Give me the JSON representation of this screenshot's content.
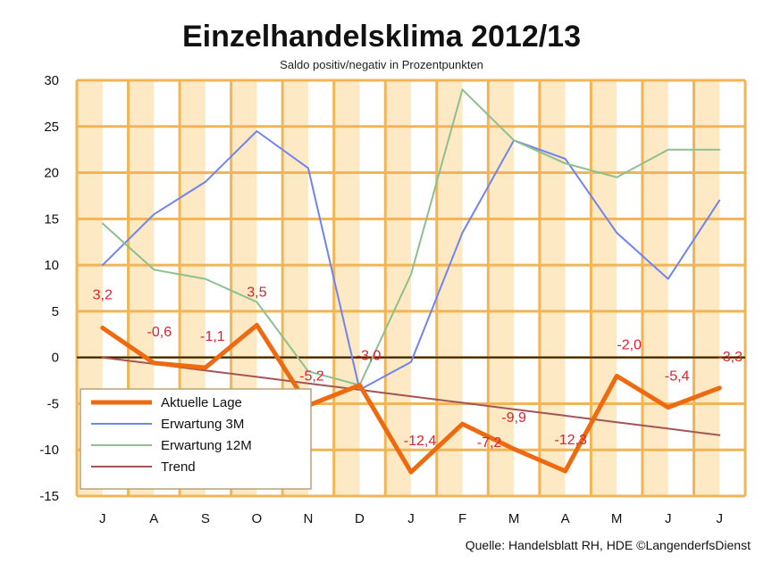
{
  "chart_data": {
    "type": "line",
    "title": "Einzelhandelsklima 2012/13",
    "subtitle": "Saldo positiv/negativ in Prozentpunkten",
    "source": "Quelle: Handelsblatt RH, HDE ©LangenderfsDienst",
    "categories": [
      "J",
      "A",
      "S",
      "O",
      "N",
      "D",
      "J",
      "F",
      "M",
      "A",
      "M",
      "J",
      "J"
    ],
    "ylim": [
      -15,
      30
    ],
    "yticks": [
      "-15",
      "-10",
      "-5",
      "0",
      "5",
      "10",
      "15",
      "20",
      "25",
      "30"
    ],
    "grid": true,
    "legend_position": "bottom-left",
    "colors": {
      "grid": "#f2b556",
      "background_band": "#fde9c4",
      "zero_line": "#222222",
      "label": "#e0202a"
    },
    "series": [
      {
        "name": "Aktuelle Lage",
        "color": "#ee6a10",
        "values": [
          3.2,
          -0.6,
          -1.1,
          3.5,
          -5.2,
          -3.0,
          -12.4,
          -7.2,
          -9.9,
          -12.3,
          -2.0,
          -5.4,
          -3.3
        ]
      },
      {
        "name": "Erwartung 3M",
        "color": "#6f84f0",
        "values": [
          10,
          15.5,
          19,
          24.5,
          20.5,
          -3.5,
          -0.5,
          13.5,
          23.5,
          21.5,
          13.5,
          8.5,
          17
        ]
      },
      {
        "name": "Erwartung 12M",
        "color": "#8ebf8e",
        "values": [
          14.5,
          9.5,
          8.5,
          6,
          -1.5,
          -3,
          9,
          29,
          23.5,
          21,
          19.5,
          22.5,
          22.5
        ]
      },
      {
        "name": "Trend",
        "color": "#a25555",
        "values": [
          0,
          -0.7,
          -1.4,
          -2.1,
          -2.8,
          -3.5,
          -4.2,
          -4.9,
          -5.6,
          -6.3,
          -7.0,
          -7.7,
          -8.4
        ]
      }
    ],
    "data_labels": [
      "3,2",
      "-0,6",
      "-1,1",
      "3,5",
      "-5,2",
      "-3,0",
      "-12,4",
      "-7,2",
      "-9,9",
      "-12,3",
      "-2,0",
      "-5,4",
      "-3,3"
    ]
  }
}
